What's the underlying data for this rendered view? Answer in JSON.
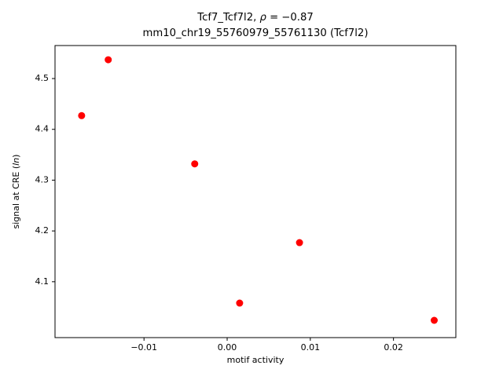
{
  "chart_data": {
    "type": "scatter",
    "title": {
      "line1_parts": [
        {
          "text": "Tcf7_Tcf7l2, ",
          "italic": false
        },
        {
          "text": "ρ",
          "italic": true
        },
        {
          "text": " = −0.87",
          "italic": false
        }
      ],
      "line1_plain": "Tcf7_Tcf7l2, ρ = −0.87",
      "line2": "mm10_chr19_55760979_55761130 (Tcf7l2)"
    },
    "xlabel": "motif activity",
    "ylabel_parts": [
      {
        "text": "signal at CRE (",
        "italic": false
      },
      {
        "text": "ln",
        "italic": true
      },
      {
        "text": ")",
        "italic": false
      }
    ],
    "ylabel_plain": "signal at CRE (ln)",
    "marker_color": "#ff0000",
    "marker_radius": 4.5,
    "x": [
      -0.0175,
      -0.0143,
      -0.0039,
      0.0015,
      0.0087,
      0.0249
    ],
    "y": [
      4.427,
      4.537,
      4.332,
      4.058,
      4.177,
      4.024
    ],
    "xlim": [
      -0.0207,
      0.0275
    ],
    "ylim": [
      3.99,
      4.565
    ],
    "xticks": [
      -0.01,
      0.0,
      0.01,
      0.02
    ],
    "xtick_labels": [
      "−0.01",
      "0.00",
      "0.01",
      "0.02"
    ],
    "yticks": [
      4.1,
      4.2,
      4.3,
      4.4,
      4.5
    ],
    "ytick_labels": [
      "4.1",
      "4.2",
      "4.3",
      "4.4",
      "4.5"
    ],
    "grid": false,
    "legend": "none"
  }
}
